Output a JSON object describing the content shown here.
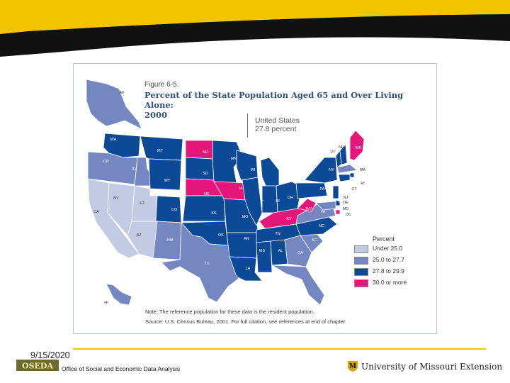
{
  "figure": {
    "label": "Figure 6-5.",
    "title_line1": "Percent of the State Population Aged 65 and Over Living Alone:",
    "title_line2": "2000",
    "us_label": "United States",
    "us_value": "27.8 percent"
  },
  "legend": {
    "title": "Percent",
    "items": [
      {
        "label": "Under 25.0",
        "color": "#c3cbe4"
      },
      {
        "label": "25.0 to 27.7",
        "color": "#7587c1"
      },
      {
        "label": "27.8 to 29.9",
        "color": "#0c4a97"
      },
      {
        "label": "30.0 or more",
        "color": "#e5157a"
      }
    ]
  },
  "note": "Note: The reference population for these data is the resident population.",
  "source": "Source: U.S. Census Bureau, 2001. For full citation, see references at end of chapter.",
  "states": [
    {
      "abbr": "AK",
      "cat": 1
    },
    {
      "abbr": "HI",
      "cat": 1
    },
    {
      "abbr": "WA",
      "cat": 2
    },
    {
      "abbr": "OR",
      "cat": 1
    },
    {
      "abbr": "CA",
      "cat": 0
    },
    {
      "abbr": "NV",
      "cat": 0
    },
    {
      "abbr": "ID",
      "cat": 1
    },
    {
      "abbr": "MT",
      "cat": 2
    },
    {
      "abbr": "WY",
      "cat": 2
    },
    {
      "abbr": "UT",
      "cat": 0
    },
    {
      "abbr": "AZ",
      "cat": 0
    },
    {
      "abbr": "CO",
      "cat": 2
    },
    {
      "abbr": "NM",
      "cat": 1
    },
    {
      "abbr": "ND",
      "cat": 3
    },
    {
      "abbr": "SD",
      "cat": 2
    },
    {
      "abbr": "NE",
      "cat": 3
    },
    {
      "abbr": "KS",
      "cat": 2
    },
    {
      "abbr": "OK",
      "cat": 2
    },
    {
      "abbr": "TX",
      "cat": 1
    },
    {
      "abbr": "MN",
      "cat": 2
    },
    {
      "abbr": "IA",
      "cat": 3
    },
    {
      "abbr": "MO",
      "cat": 2
    },
    {
      "abbr": "AR",
      "cat": 2
    },
    {
      "abbr": "LA",
      "cat": 2
    },
    {
      "abbr": "WI",
      "cat": 2
    },
    {
      "abbr": "IL",
      "cat": 2
    },
    {
      "abbr": "MI",
      "cat": 2
    },
    {
      "abbr": "IN",
      "cat": 2
    },
    {
      "abbr": "OH",
      "cat": 2
    },
    {
      "abbr": "KY",
      "cat": 3
    },
    {
      "abbr": "TN",
      "cat": 2
    },
    {
      "abbr": "MS",
      "cat": 2
    },
    {
      "abbr": "AL",
      "cat": 2
    },
    {
      "abbr": "GA",
      "cat": 1
    },
    {
      "abbr": "FL",
      "cat": 1
    },
    {
      "abbr": "SC",
      "cat": 1
    },
    {
      "abbr": "NC",
      "cat": 2
    },
    {
      "abbr": "VA",
      "cat": 1
    },
    {
      "abbr": "WV",
      "cat": 3
    },
    {
      "abbr": "PA",
      "cat": 2
    },
    {
      "abbr": "NY",
      "cat": 2
    },
    {
      "abbr": "ME",
      "cat": 3
    },
    {
      "abbr": "VT",
      "cat": 2
    },
    {
      "abbr": "NH",
      "cat": 2
    },
    {
      "abbr": "MA",
      "cat": 1
    },
    {
      "abbr": "RI",
      "cat": 2
    },
    {
      "abbr": "CT",
      "cat": 2
    },
    {
      "abbr": "NJ",
      "cat": 2
    },
    {
      "abbr": "DE",
      "cat": 2
    },
    {
      "abbr": "MD",
      "cat": 1
    },
    {
      "abbr": "DC",
      "cat": 3
    }
  ],
  "footer": {
    "date": "9/15/2020",
    "logo_text": "OSEDA",
    "office": "Office of Social and Economic Data Analysis",
    "university": "University of Missouri Extension"
  }
}
